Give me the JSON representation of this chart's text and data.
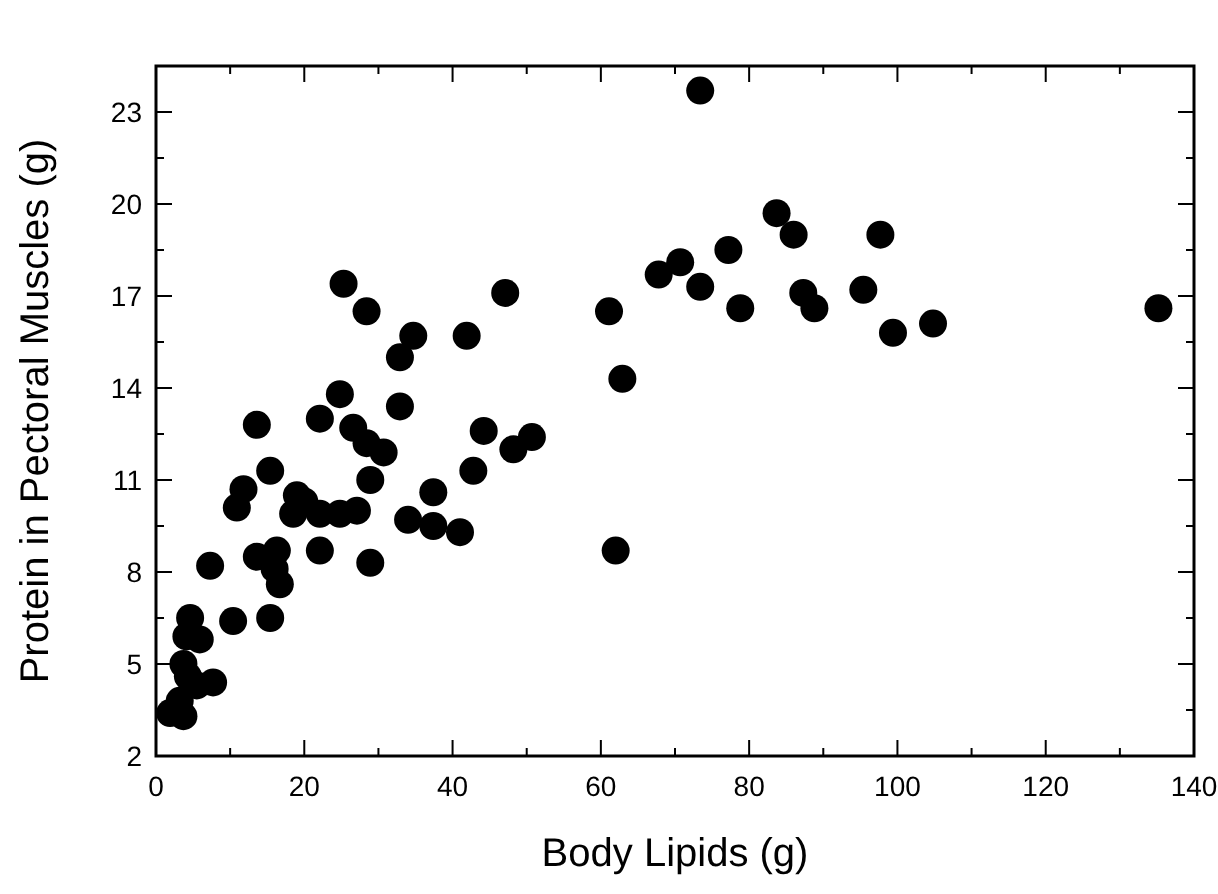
{
  "chart_data": {
    "type": "scatter",
    "xlabel": "Body Lipids  (g)",
    "ylabel": "Protein in Pectoral Muscles  (g)",
    "xlim": [
      0,
      140
    ],
    "ylim": [
      2,
      24.5
    ],
    "xticks": [
      0,
      20,
      40,
      60,
      80,
      100,
      120,
      140
    ],
    "yticks": [
      2,
      5,
      8,
      11,
      14,
      17,
      20,
      23
    ],
    "grid": false,
    "marker": "circle",
    "series": [
      {
        "color": "#000000",
        "x": [
          73.4,
          25.3,
          28.4,
          47.1,
          61.1,
          67.8,
          70.7,
          73.4,
          77.2,
          78.8,
          83.7,
          86.0,
          87.3,
          88.8,
          95.4,
          97.7,
          99.4,
          104.8,
          135.2,
          62.9,
          62.0,
          32.9,
          34.7,
          41.9,
          32.9,
          44.2,
          42.8,
          48.2,
          50.7,
          37.4,
          34.0,
          37.4,
          41.0,
          28.9,
          22.1,
          13.6,
          24.8,
          22.1,
          26.6,
          28.4,
          30.7,
          28.9,
          15.4,
          11.8,
          10.9,
          19.0,
          18.5,
          22.1,
          24.8,
          27.1,
          20.0,
          7.3,
          13.6,
          16.3,
          16.0,
          16.7,
          10.4,
          15.4,
          4.6,
          4.1,
          5.9,
          7.7,
          5.5,
          3.7,
          3.2,
          3.7,
          1.9,
          4.3
        ],
        "values": [
          23.7,
          17.4,
          16.5,
          17.1,
          16.5,
          17.7,
          18.1,
          17.3,
          18.5,
          16.6,
          19.7,
          19.0,
          17.1,
          16.6,
          17.2,
          19.0,
          15.8,
          16.1,
          16.6,
          14.3,
          8.7,
          15.0,
          15.7,
          15.7,
          13.4,
          12.6,
          11.3,
          12.0,
          12.4,
          10.6,
          9.7,
          9.5,
          9.3,
          8.3,
          8.7,
          12.8,
          13.8,
          13.0,
          12.7,
          12.2,
          11.9,
          11.0,
          11.3,
          10.7,
          10.1,
          10.5,
          9.9,
          9.9,
          9.9,
          10.0,
          10.3,
          8.2,
          8.5,
          8.7,
          8.1,
          7.6,
          6.4,
          6.5,
          6.5,
          5.9,
          5.8,
          4.4,
          4.3,
          5.0,
          3.8,
          3.3,
          3.4,
          4.6
        ]
      }
    ]
  }
}
